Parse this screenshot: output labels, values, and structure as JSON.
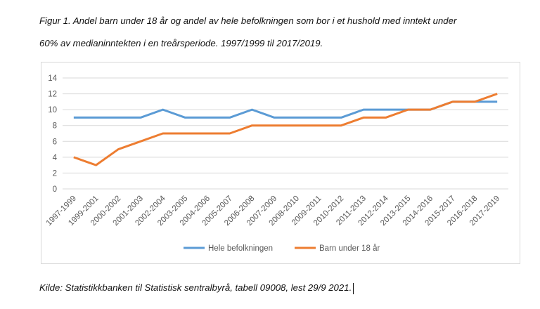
{
  "caption_line1": "Figur 1. Andel barn under 18 år og andel av hele befolkningen som bor i et hushold med inntekt under",
  "caption_line2": "60% av medianinntekten i en treårsperiode. 1997/1999 til 2017/2019.",
  "source": "Kilde: Statistikkbanken til Statistisk sentralbyrå, tabell 09008, lest 29/9 2021.",
  "chart_data": {
    "type": "line",
    "categories": [
      "1997-1999",
      "1999-2001",
      "2000-2002",
      "2001-2003",
      "2002-2004",
      "2003-2005",
      "2004-2006",
      "2005-2007",
      "2006-2008",
      "2007-2009",
      "2008-2010",
      "2009-2011",
      "2010-2012",
      "2011-2013",
      "2012-2014",
      "2013-2015",
      "2014-2016",
      "2015-2017",
      "2016-2018",
      "2017-2019"
    ],
    "series": [
      {
        "name": "Hele befolkningen",
        "color": "#5b9bd5",
        "values": [
          9,
          9,
          9,
          9,
          10,
          9,
          9,
          9,
          10,
          9,
          9,
          9,
          9,
          10,
          10,
          10,
          10,
          11,
          11,
          11
        ]
      },
      {
        "name": "Barn under 18 år",
        "color": "#ed7d31",
        "values": [
          4,
          3,
          5,
          6,
          7,
          7,
          7,
          7,
          8,
          8,
          8,
          8,
          8,
          9,
          9,
          10,
          10,
          11,
          11,
          12
        ]
      }
    ],
    "ylim": [
      0,
      14
    ],
    "yticks": [
      "0",
      "2",
      "4",
      "6",
      "8",
      "10",
      "12",
      "14"
    ],
    "grid": true,
    "legend": "bottom"
  }
}
